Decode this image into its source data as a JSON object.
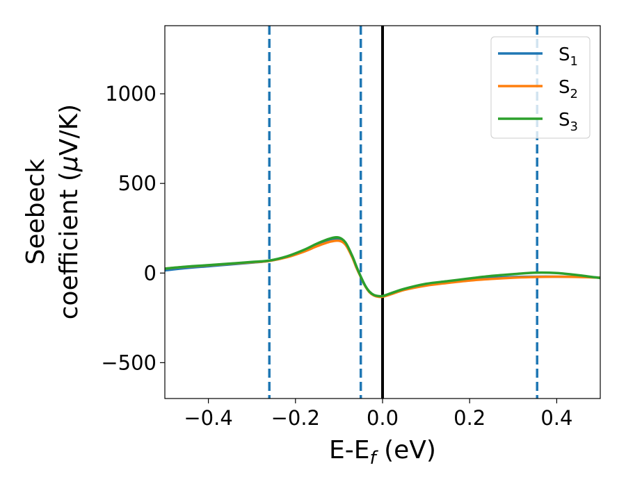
{
  "chart_data": {
    "type": "line",
    "xlabel": {
      "main": "E-E",
      "sub": "f",
      "unit": " (eV)"
    },
    "ylabel": {
      "line1": "Seebeck",
      "line2_prefix": "coefficient  (",
      "line2_greek": "μ",
      "line2_suffix": "V/K)"
    },
    "xlim": [
      -0.5,
      0.5
    ],
    "ylim": [
      -700,
      1380
    ],
    "x_ticks": [
      -0.4,
      -0.2,
      0.0,
      0.2,
      0.4
    ],
    "x_tick_labels": [
      "−0.4",
      "−0.2",
      "0.0",
      "0.2",
      "0.4"
    ],
    "y_ticks": [
      -500,
      0,
      500,
      1000
    ],
    "y_tick_labels": [
      "−500",
      "0",
      "500",
      "1000"
    ],
    "vertical_lines": [
      {
        "x": -0.26,
        "style": "dashed",
        "color": "#1f77b4"
      },
      {
        "x": -0.05,
        "style": "dashed",
        "color": "#1f77b4"
      },
      {
        "x": 0.355,
        "style": "dashed",
        "color": "#1f77b4"
      },
      {
        "x": 0.0,
        "style": "solid",
        "color": "#000000"
      }
    ],
    "legend_position": "top-right",
    "x": [
      -0.5,
      -0.45,
      -0.4,
      -0.35,
      -0.3,
      -0.26,
      -0.22,
      -0.18,
      -0.15,
      -0.12,
      -0.1,
      -0.085,
      -0.07,
      -0.06,
      -0.05,
      -0.04,
      -0.03,
      -0.02,
      -0.01,
      0.0,
      0.02,
      0.05,
      0.1,
      0.15,
      0.2,
      0.25,
      0.3,
      0.35,
      0.4,
      0.45,
      0.5
    ],
    "series": [
      {
        "name": "S",
        "sub": "1",
        "color": "#1f77b4",
        "values": [
          15,
          28,
          38,
          48,
          58,
          68,
          90,
          125,
          158,
          188,
          190,
          165,
          95,
          35,
          -20,
          -70,
          -105,
          -123,
          -130,
          -130,
          -115,
          -90,
          -65,
          -50,
          -37,
          -28,
          -22,
          -20,
          -20,
          -21,
          -25
        ]
      },
      {
        "name": "S",
        "sub": "2",
        "color": "#ff7f0e",
        "values": [
          25,
          35,
          43,
          52,
          60,
          68,
          88,
          120,
          150,
          175,
          180,
          158,
          90,
          30,
          -22,
          -72,
          -107,
          -125,
          -132,
          -132,
          -118,
          -94,
          -70,
          -55,
          -42,
          -33,
          -26,
          -22,
          -20,
          -22,
          -26
        ]
      },
      {
        "name": "S",
        "sub": "3",
        "color": "#2ca02c",
        "values": [
          25,
          36,
          44,
          53,
          62,
          70,
          93,
          130,
          165,
          193,
          198,
          170,
          98,
          37,
          -20,
          -70,
          -104,
          -122,
          -128,
          -128,
          -112,
          -88,
          -60,
          -45,
          -30,
          -16,
          -6,
          2,
          0,
          -12,
          -28
        ]
      }
    ]
  }
}
